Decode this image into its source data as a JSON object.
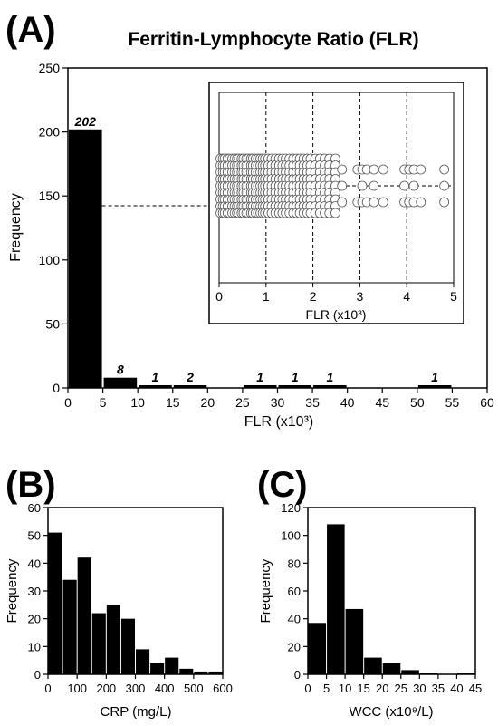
{
  "panel_labels": {
    "a": "(A)",
    "b": "(B)",
    "c": "(C)"
  },
  "chart_data": [
    {
      "type": "bar",
      "panel": "A",
      "title": "Ferritin-Lymphocyte Ratio (FLR)",
      "xlabel": "FLR (x10³)",
      "ylabel": "Frequency",
      "xlim": [
        0,
        60
      ],
      "ylim": [
        0,
        250
      ],
      "x_ticks": [
        "0",
        "5",
        "10",
        "15",
        "20",
        "25",
        "30",
        "35",
        "40",
        "45",
        "50",
        "55",
        "60"
      ],
      "y_ticks": [
        "0",
        "50",
        "100",
        "150",
        "200",
        "250"
      ],
      "bins": [
        {
          "x0": 0,
          "x1": 5,
          "value": 202,
          "label": "202"
        },
        {
          "x0": 5,
          "x1": 10,
          "value": 8,
          "label": "8"
        },
        {
          "x0": 10,
          "x1": 15,
          "value": 1,
          "label": "1"
        },
        {
          "x0": 15,
          "x1": 20,
          "value": 2,
          "label": "2"
        },
        {
          "x0": 25,
          "x1": 30,
          "value": 1,
          "label": "1"
        },
        {
          "x0": 30,
          "x1": 35,
          "value": 1,
          "label": "1"
        },
        {
          "x0": 35,
          "x1": 40,
          "value": 1,
          "label": "1"
        },
        {
          "x0": 50,
          "x1": 55,
          "value": 1,
          "label": "1"
        }
      ],
      "inset": {
        "type": "scatter",
        "xlabel": "FLR (x10³)",
        "xlim": [
          0,
          5
        ],
        "x_ticks": [
          "0",
          "1",
          "2",
          "3",
          "4",
          "5"
        ],
        "grid": "vertical dashed at 1, 2, 3, 4",
        "reference_line": "horizontal dashed at median",
        "points_x": [
          0.03,
          0.08,
          0.12,
          0.18,
          0.22,
          0.28,
          0.33,
          0.38,
          0.42,
          0.48,
          0.52,
          0.58,
          0.62,
          0.68,
          0.72,
          0.78,
          0.83,
          0.88,
          0.93,
          0.98,
          1.05,
          1.12,
          1.2,
          1.28,
          1.35,
          1.42,
          1.5,
          1.58,
          1.65,
          1.72,
          1.8,
          1.88,
          1.95,
          2.05,
          2.15,
          2.25,
          2.35,
          2.48,
          2.62,
          2.95,
          3.05,
          3.15,
          3.3,
          3.5,
          3.95,
          4.05,
          4.15,
          4.3,
          4.8
        ]
      }
    },
    {
      "type": "bar",
      "panel": "B",
      "xlabel": "CRP (mg/L)",
      "ylabel": "Frequency",
      "xlim": [
        0,
        600
      ],
      "ylim": [
        0,
        60
      ],
      "x_ticks": [
        "0",
        "100",
        "200",
        "300",
        "400",
        "500",
        "600"
      ],
      "y_ticks": [
        "0",
        "10",
        "20",
        "30",
        "40",
        "50",
        "60"
      ],
      "bin_width": 50,
      "values": [
        51,
        34,
        42,
        22,
        25,
        20,
        9,
        4,
        6,
        2,
        1,
        1
      ]
    },
    {
      "type": "bar",
      "panel": "C",
      "xlabel": "WCC (x10⁹/L)",
      "ylabel": "Frequency",
      "xlim": [
        0,
        45
      ],
      "ylim": [
        0,
        120
      ],
      "x_ticks": [
        "0",
        "5",
        "10",
        "15",
        "20",
        "25",
        "30",
        "35",
        "40",
        "45"
      ],
      "y_ticks": [
        "0",
        "20",
        "40",
        "60",
        "80",
        "100",
        "120"
      ],
      "bin_width": 5,
      "values": [
        37,
        108,
        47,
        12,
        8,
        3,
        1,
        0,
        1
      ]
    }
  ]
}
